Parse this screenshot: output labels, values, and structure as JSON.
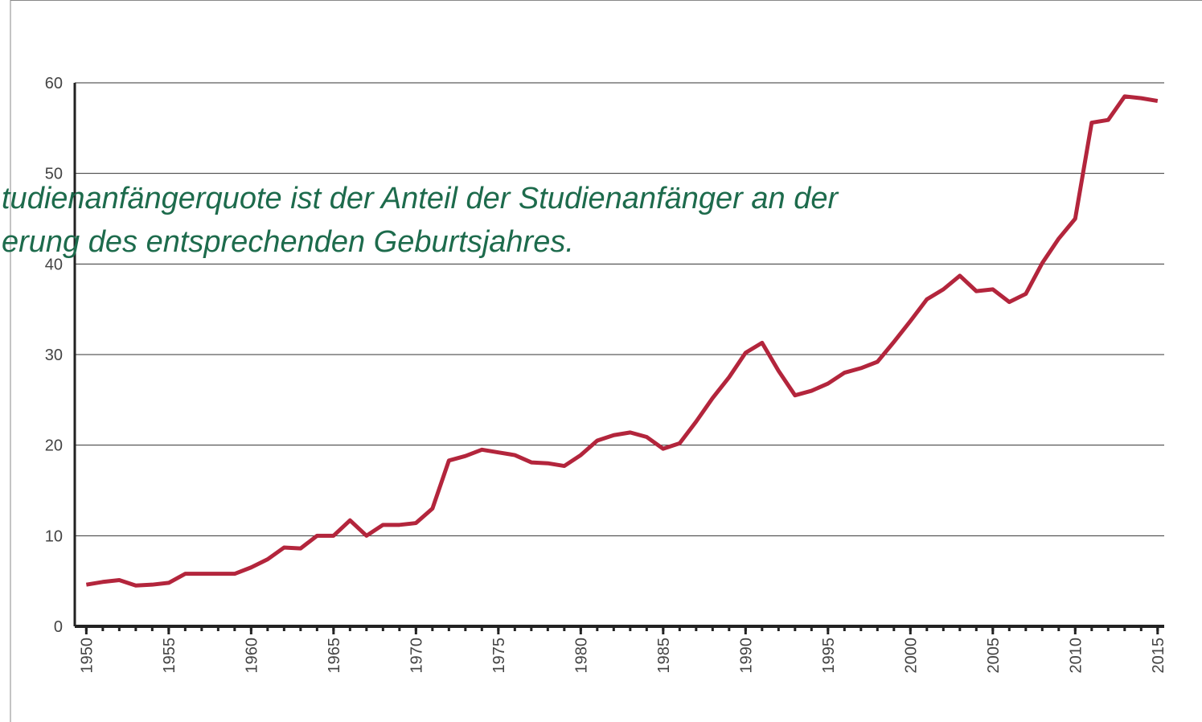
{
  "chart_data": {
    "type": "line",
    "overlay_text": [
      "tudienanfängerquote ist der Anteil der Studienanfänger an der",
      "erung des entsprechenden Geburtsjahres."
    ],
    "x": [
      1950,
      1951,
      1952,
      1953,
      1954,
      1955,
      1956,
      1957,
      1958,
      1959,
      1960,
      1961,
      1962,
      1963,
      1964,
      1965,
      1966,
      1967,
      1968,
      1969,
      1970,
      1971,
      1972,
      1973,
      1974,
      1975,
      1976,
      1977,
      1978,
      1979,
      1980,
      1981,
      1982,
      1983,
      1984,
      1985,
      1986,
      1987,
      1988,
      1989,
      1990,
      1991,
      1992,
      1993,
      1994,
      1995,
      1996,
      1997,
      1998,
      1999,
      2000,
      2001,
      2002,
      2003,
      2004,
      2005,
      2006,
      2007,
      2008,
      2009,
      2010,
      2011,
      2012,
      2013,
      2014,
      2015
    ],
    "series": [
      {
        "color": "#b3253c",
        "values": [
          4.6,
          4.9,
          5.1,
          4.5,
          4.6,
          4.8,
          5.8,
          5.8,
          5.8,
          5.8,
          6.5,
          7.4,
          8.7,
          8.6,
          10.0,
          10.0,
          11.7,
          10.0,
          11.2,
          11.2,
          11.4,
          13.0,
          18.3,
          18.8,
          19.5,
          19.2,
          18.9,
          18.1,
          18.0,
          17.7,
          18.9,
          20.5,
          21.1,
          21.4,
          20.9,
          19.6,
          20.2,
          22.6,
          25.2,
          27.5,
          30.2,
          31.3,
          28.2,
          25.5,
          26.0,
          26.8,
          28.0,
          28.5,
          29.2,
          31.4,
          33.7,
          36.1,
          37.2,
          38.7,
          37.0,
          37.2,
          35.8,
          36.7,
          40.1,
          42.8,
          45.0,
          55.6,
          55.9,
          58.5,
          58.3,
          58.0
        ]
      }
    ],
    "xlim": [
      1949.3,
      2015.4
    ],
    "xticks": [
      1950,
      1955,
      1960,
      1965,
      1970,
      1975,
      1980,
      1985,
      1990,
      1995,
      2000,
      2005,
      2010,
      2015
    ],
    "ylim": [
      0,
      60
    ],
    "yticks": [
      0,
      10,
      20,
      30,
      40,
      50,
      60
    ],
    "grid": true
  }
}
